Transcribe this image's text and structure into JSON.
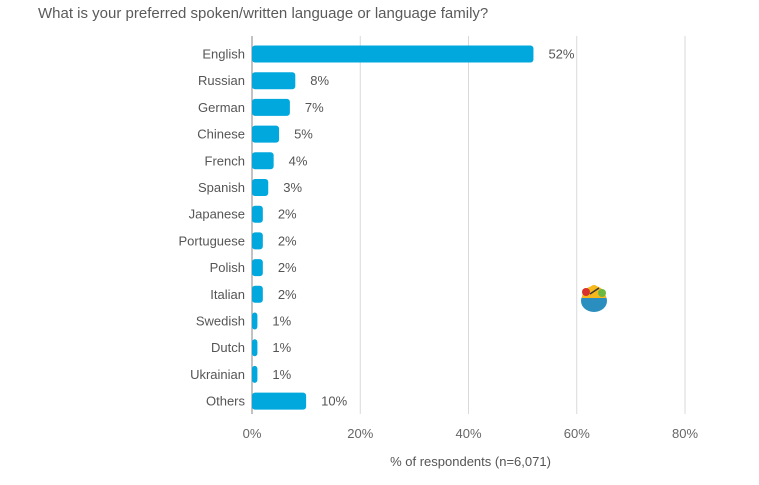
{
  "chart_data": {
    "type": "bar",
    "orientation": "horizontal",
    "title": "What is your preferred spoken/written language or language family?",
    "xlabel": "% of respondents (n=6,071)",
    "ylabel": "",
    "xlim": [
      0,
      80
    ],
    "xticks": [
      0,
      20,
      40,
      60,
      80
    ],
    "xtick_labels": [
      "0%",
      "20%",
      "40%",
      "60%",
      "80%"
    ],
    "grid": true,
    "bar_color": "#00a8de",
    "categories": [
      "English",
      "Russian",
      "German",
      "Chinese",
      "French",
      "Spanish",
      "Japanese",
      "Portuguese",
      "Polish",
      "Italian",
      "Swedish",
      "Dutch",
      "Ukrainian",
      "Others"
    ],
    "values": [
      52,
      8,
      7,
      5,
      4,
      3,
      2,
      2,
      2,
      2,
      1,
      1,
      1,
      10
    ],
    "data_labels": [
      "52%",
      "8%",
      "7%",
      "5%",
      "4%",
      "3%",
      "2%",
      "2%",
      "2%",
      "2%",
      "1%",
      "1%",
      "1%",
      "10%"
    ]
  },
  "logo": {
    "icon": "bowl-logo-icon"
  }
}
